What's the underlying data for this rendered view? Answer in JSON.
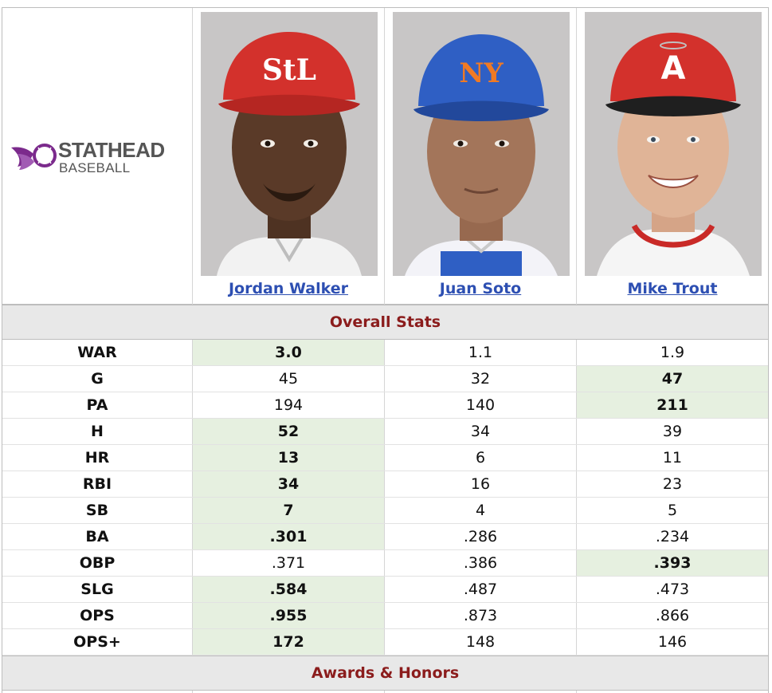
{
  "logo": {
    "line1": "STATHEAD",
    "line2": "BASEBALL"
  },
  "players": [
    {
      "name": "Jordan Walker",
      "cap_color": "#d3312c",
      "cap_logo": "StL",
      "skin": "#5a3a28"
    },
    {
      "name": "Juan Soto",
      "cap_color": "#2f5fc4",
      "cap_logo": "NY",
      "skin": "#a3755a"
    },
    {
      "name": "Mike Trout",
      "cap_color": "#d3312c",
      "cap_logo": "A",
      "skin": "#e0b497"
    }
  ],
  "sections": {
    "overall": "Overall Stats",
    "awards": "Awards & Honors"
  },
  "stats": [
    {
      "label": "WAR",
      "values": [
        "3.0",
        "1.1",
        "1.9"
      ],
      "best": 0
    },
    {
      "label": "G",
      "values": [
        "45",
        "32",
        "47"
      ],
      "best": 2
    },
    {
      "label": "PA",
      "values": [
        "194",
        "140",
        "211"
      ],
      "best": 2
    },
    {
      "label": "H",
      "values": [
        "52",
        "34",
        "39"
      ],
      "best": 0
    },
    {
      "label": "HR",
      "values": [
        "13",
        "6",
        "11"
      ],
      "best": 0
    },
    {
      "label": "RBI",
      "values": [
        "34",
        "16",
        "23"
      ],
      "best": 0
    },
    {
      "label": "SB",
      "values": [
        "7",
        "4",
        "5"
      ],
      "best": 0
    },
    {
      "label": "BA",
      "values": [
        ".301",
        ".286",
        ".234"
      ],
      "best": 0
    },
    {
      "label": "OBP",
      "values": [
        ".371",
        ".386",
        ".393"
      ],
      "best": 2
    },
    {
      "label": "SLG",
      "values": [
        ".584",
        ".487",
        ".473"
      ],
      "best": 0
    },
    {
      "label": "OPS",
      "values": [
        ".955",
        ".873",
        ".866"
      ],
      "best": 0
    },
    {
      "label": "OPS+",
      "values": [
        "172",
        "148",
        "146"
      ],
      "best": 0
    }
  ],
  "colors": {
    "highlight": "#e6f0e0",
    "section_text": "#8b1c1c",
    "link": "#2d4fb2",
    "logo_purple": "#7b2a8c"
  }
}
